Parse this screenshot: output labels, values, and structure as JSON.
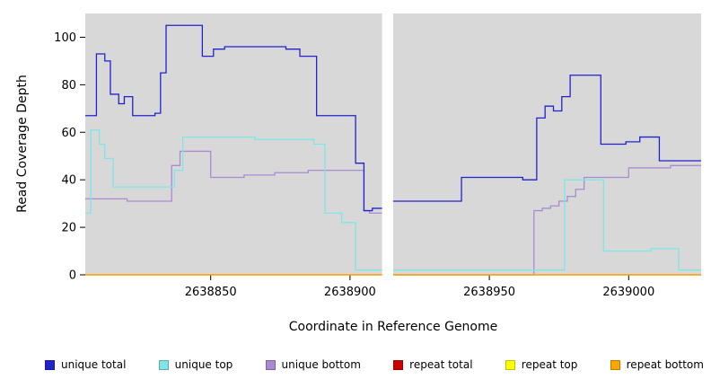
{
  "chart_data": {
    "type": "line",
    "subtype": "step-after",
    "title": "",
    "xlabel": "Coordinate in Reference Genome",
    "ylabel": "Read Coverage Depth",
    "xlim": [
      2638805,
      2639026
    ],
    "ylim": [
      0,
      110
    ],
    "xticks": [
      2638850,
      2638900,
      2638950,
      2639000
    ],
    "yticks": [
      0,
      20,
      40,
      60,
      80,
      100
    ],
    "grid": false,
    "panel_bg": "#d8d8d8",
    "gap_x": [
      2638911.5,
      2638915.5
    ],
    "legend_position": "bottom",
    "series": [
      {
        "name": "unique total",
        "color": "#2222cd",
        "z": 6,
        "points": [
          [
            2638805,
            67
          ],
          [
            2638809,
            93
          ],
          [
            2638812,
            90
          ],
          [
            2638814,
            76
          ],
          [
            2638817,
            72
          ],
          [
            2638819,
            75
          ],
          [
            2638822,
            67
          ],
          [
            2638830,
            68
          ],
          [
            2638832,
            85
          ],
          [
            2638834,
            105
          ],
          [
            2638845,
            105
          ],
          [
            2638847,
            92
          ],
          [
            2638851,
            95
          ],
          [
            2638855,
            96
          ],
          [
            2638877,
            95
          ],
          [
            2638882,
            92
          ],
          [
            2638888,
            67
          ],
          [
            2638902,
            47
          ],
          [
            2638905,
            27
          ],
          [
            2638908,
            28
          ],
          [
            2638911,
            28
          ],
          [
            2638916,
            31
          ],
          [
            2638940,
            41
          ],
          [
            2638962,
            40
          ],
          [
            2638967,
            66
          ],
          [
            2638970,
            71
          ],
          [
            2638973,
            69
          ],
          [
            2638976,
            75
          ],
          [
            2638979,
            84
          ],
          [
            2638990,
            55
          ],
          [
            2638999,
            56
          ],
          [
            2639004,
            58
          ],
          [
            2639011,
            48
          ],
          [
            2639026,
            48
          ]
        ]
      },
      {
        "name": "unique top",
        "color": "#7fe6e6",
        "z": 5,
        "points": [
          [
            2638805,
            26
          ],
          [
            2638807,
            61
          ],
          [
            2638810,
            55
          ],
          [
            2638812,
            49
          ],
          [
            2638815,
            37
          ],
          [
            2638835,
            37
          ],
          [
            2638837,
            44
          ],
          [
            2638840,
            58
          ],
          [
            2638864,
            58
          ],
          [
            2638866,
            57
          ],
          [
            2638884,
            57
          ],
          [
            2638887,
            55
          ],
          [
            2638891,
            26
          ],
          [
            2638897,
            22
          ],
          [
            2638902,
            2
          ],
          [
            2638911,
            2
          ],
          [
            2638916,
            2
          ],
          [
            2638974,
            2
          ],
          [
            2638977,
            40
          ],
          [
            2638990,
            40
          ],
          [
            2638991,
            10
          ],
          [
            2639006,
            10
          ],
          [
            2639008,
            11
          ],
          [
            2639016,
            11
          ],
          [
            2639018,
            2
          ],
          [
            2639026,
            2
          ]
        ]
      },
      {
        "name": "unique bottom",
        "color": "#a98ad3",
        "z": 1,
        "points": [
          [
            2638805,
            32
          ],
          [
            2638818,
            32
          ],
          [
            2638820,
            31
          ],
          [
            2638834,
            31
          ],
          [
            2638836,
            46
          ],
          [
            2638839,
            52
          ],
          [
            2638847,
            52
          ],
          [
            2638850,
            41
          ],
          [
            2638860,
            41
          ],
          [
            2638862,
            42
          ],
          [
            2638871,
            42
          ],
          [
            2638873,
            43
          ],
          [
            2638882,
            43
          ],
          [
            2638885,
            44
          ],
          [
            2638902,
            44
          ],
          [
            2638905,
            27
          ],
          [
            2638907,
            26
          ],
          [
            2638911,
            26
          ],
          [
            2638916,
            0
          ],
          [
            2638964,
            0
          ],
          [
            2638966,
            27
          ],
          [
            2638969,
            28
          ],
          [
            2638972,
            29
          ],
          [
            2638975,
            31
          ],
          [
            2638978,
            33
          ],
          [
            2638981,
            36
          ],
          [
            2638984,
            41
          ],
          [
            2638998,
            41
          ],
          [
            2639000,
            45
          ],
          [
            2639013,
            45
          ],
          [
            2639015,
            46
          ],
          [
            2639026,
            46
          ]
        ]
      },
      {
        "name": "repeat total",
        "color": "#cc0000",
        "z": 2,
        "points": [
          [
            2638805,
            0
          ],
          [
            2639026,
            0
          ]
        ]
      },
      {
        "name": "repeat top",
        "color": "#ffff00",
        "z": 3,
        "points": [
          [
            2638805,
            0
          ],
          [
            2639026,
            0
          ]
        ]
      },
      {
        "name": "repeat bottom",
        "color": "#ffa500",
        "z": 4,
        "points": [
          [
            2638805,
            0
          ],
          [
            2639026,
            0
          ]
        ]
      }
    ]
  }
}
